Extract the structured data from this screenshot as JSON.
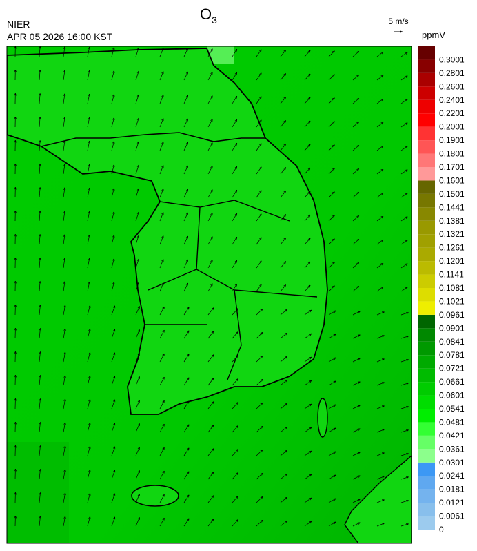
{
  "header": {
    "title": "O",
    "title_subscript": "3",
    "agency": "NIER",
    "datetime": "APR 05 2026 16:00 KST",
    "wind_reference": "5 m/s"
  },
  "colorbar": {
    "unit": "ppmV",
    "levels": [
      {
        "label": 0,
        "color": "#9ccbee"
      },
      {
        "label": 0.0061,
        "color": "#88bfec"
      },
      {
        "label": 0.0121,
        "color": "#74b3ee"
      },
      {
        "label": 0.0181,
        "color": "#5fa8f0"
      },
      {
        "label": 0.0241,
        "color": "#3c98f4"
      },
      {
        "label": 0.0301,
        "color": "#8cff8c"
      },
      {
        "label": 0.0361,
        "color": "#66ff66"
      },
      {
        "label": 0.0421,
        "color": "#33ff33"
      },
      {
        "label": 0.0481,
        "color": "#00ee00"
      },
      {
        "label": 0.0541,
        "color": "#00dd00"
      },
      {
        "label": 0.0601,
        "color": "#00cc00"
      },
      {
        "label": 0.0661,
        "color": "#00bb00"
      },
      {
        "label": 0.0721,
        "color": "#00aa00"
      },
      {
        "label": 0.0781,
        "color": "#009900"
      },
      {
        "label": 0.0841,
        "color": "#008800"
      },
      {
        "label": 0.0901,
        "color": "#006600"
      },
      {
        "label": 0.0961,
        "color": "#eeee00"
      },
      {
        "label": 0.1021,
        "color": "#dddd00"
      },
      {
        "label": 0.1081,
        "color": "#cccc00"
      },
      {
        "label": 0.1141,
        "color": "#bbbb00"
      },
      {
        "label": 0.1201,
        "color": "#aaaa00"
      },
      {
        "label": 0.1261,
        "color": "#a0a000"
      },
      {
        "label": 0.1321,
        "color": "#999900"
      },
      {
        "label": 0.1381,
        "color": "#888800"
      },
      {
        "label": 0.1441,
        "color": "#777700"
      },
      {
        "label": 0.1501,
        "color": "#666600"
      },
      {
        "label": 0.1601,
        "color": "#ff9999"
      },
      {
        "label": 0.1701,
        "color": "#ff7777"
      },
      {
        "label": 0.1801,
        "color": "#ff5555"
      },
      {
        "label": 0.1901,
        "color": "#ff3333"
      },
      {
        "label": 0.2001,
        "color": "#ff0000"
      },
      {
        "label": 0.2201,
        "color": "#ee0000"
      },
      {
        "label": 0.2401,
        "color": "#cc0000"
      },
      {
        "label": 0.2601,
        "color": "#aa0000"
      },
      {
        "label": 0.2801,
        "color": "#880000"
      },
      {
        "label": 0.3001,
        "color": "#660000"
      }
    ]
  }
}
